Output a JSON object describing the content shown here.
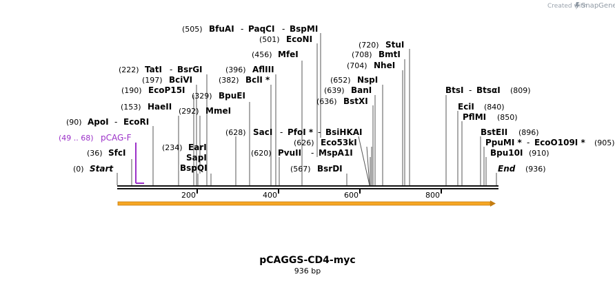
{
  "brand": {
    "created_by": "Created with",
    "name": "SnapGene"
  },
  "plasmid": {
    "name": "pCAGGS-CD4-myc",
    "length_label": "936 bp"
  },
  "ruler": {
    "ticks": [
      "200",
      "400",
      "600",
      "800"
    ]
  },
  "primer": {
    "range": "(49 .. 68)",
    "name": "pCAG-F",
    "color": "#9b30c8"
  },
  "feature": {
    "name": "orf arrow",
    "color": "#f0a020"
  },
  "labels": {
    "start_pos": "(0)",
    "start": "Start",
    "end_pos": "(936)",
    "end": "End",
    "sfcI_pos": "(36)",
    "sfcI": "SfcI",
    "apoI_pos": "(90)",
    "apoI": "ApoI",
    "ecoRI": "EcoRI",
    "haeII_pos": "(153)",
    "haeII": "HaeII",
    "ecop15I_pos": "(190)",
    "ecop15I": "EcoP15I",
    "bciVI_pos": "(197)",
    "bciVI": "BciVI",
    "tatI_pos": "(222)",
    "tatI": "TatI",
    "bsrGI": "BsrGI",
    "earI_pos": "(234)",
    "earI": "EarI",
    "sapI": "SapI",
    "bspQI": "BspQI",
    "mmeI_pos": "(292)",
    "mmeI": "MmeI",
    "bpuEI_pos": "(329)",
    "bpuEI": "BpuEI",
    "bclI_pos": "(382)",
    "bclI": "BclI *",
    "aflIII_pos": "(396)",
    "aflIII": "AflIII",
    "mfeI_pos": "(456)",
    "mfeI": "MfeI",
    "bfuAI_pos": "(505)",
    "bfuAI": "BfuAI",
    "paqCI": "PaqCI",
    "bspMI": "BspMI",
    "ecoNI_pos": "(501)",
    "ecoNI": "EcoNI",
    "sacI_pos": "(628)",
    "sacI": "SacI",
    "pfoI": "PfoI *",
    "bsiHKAI": "BsiHKAI",
    "eco53kI_pos": "(626)",
    "eco53kI": "Eco53kI",
    "pvuII_pos": "(620)",
    "pvuII": "PvuII",
    "mspA1I": "MspA1I",
    "bsrDI_pos": "(567)",
    "bsrDI": "BsrDI",
    "bstXI_pos": "(636)",
    "bstXI": "BstXI",
    "banI_pos": "(639)",
    "banI": "BanI",
    "nspI_pos": "(652)",
    "nspI": "NspI",
    "nheI_pos": "(704)",
    "nheI": "NheI",
    "bmtI_pos": "(708)",
    "bmtI": "BmtI",
    "stuI_pos": "(720)",
    "stuI": "StuI",
    "btsI": "BtsI",
    "btsaI": "BtsαI",
    "btsI_pos": "(809)",
    "eciI": "EciI",
    "eciI_pos": "(840)",
    "pflMI": "PflMI",
    "pflMI_pos": "(850)",
    "bstEII": "BstEII",
    "bstEII_pos": "(896)",
    "ppuMI": "PpuMI *",
    "ecoO109I": "EcoO109I *",
    "ppuMI_pos": "(905)",
    "bpu10I": "Bpu10I",
    "bpu10I_pos": "(910)",
    "dash": "-"
  }
}
